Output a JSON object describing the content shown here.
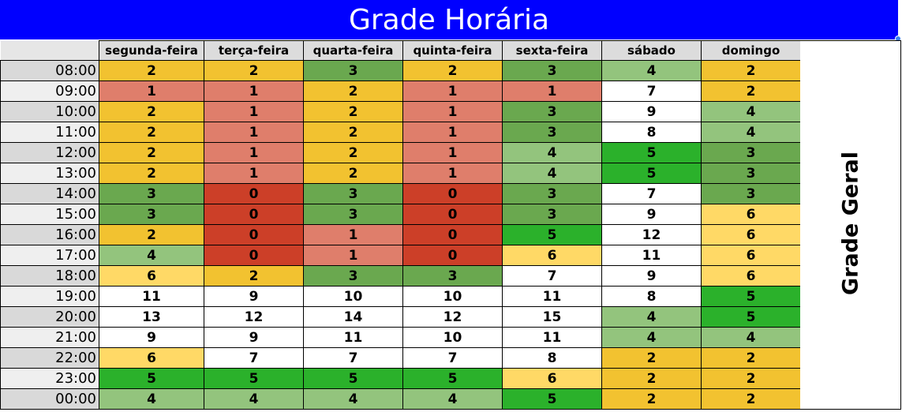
{
  "title": "Grade Horária",
  "side_label": "Grade Geral",
  "days": [
    "segunda-feira",
    "terça-feira",
    "quarta-feira",
    "quinta-feira",
    "sexta-feira",
    "sábado",
    "domingo"
  ],
  "rows": [
    {
      "time": "08:00",
      "values": [
        2,
        2,
        3,
        2,
        3,
        4,
        2
      ]
    },
    {
      "time": "09:00",
      "values": [
        1,
        1,
        2,
        1,
        1,
        7,
        2
      ]
    },
    {
      "time": "10:00",
      "values": [
        2,
        1,
        2,
        1,
        3,
        9,
        4
      ]
    },
    {
      "time": "11:00",
      "values": [
        2,
        1,
        2,
        1,
        3,
        8,
        4
      ]
    },
    {
      "time": "12:00",
      "values": [
        2,
        1,
        2,
        1,
        4,
        5,
        3
      ]
    },
    {
      "time": "13:00",
      "values": [
        2,
        1,
        2,
        1,
        4,
        5,
        3
      ]
    },
    {
      "time": "14:00",
      "values": [
        3,
        0,
        3,
        0,
        3,
        7,
        3
      ]
    },
    {
      "time": "15:00",
      "values": [
        3,
        0,
        3,
        0,
        3,
        9,
        6
      ]
    },
    {
      "time": "16:00",
      "values": [
        2,
        0,
        1,
        0,
        5,
        12,
        6
      ]
    },
    {
      "time": "17:00",
      "values": [
        4,
        0,
        1,
        0,
        6,
        11,
        6
      ]
    },
    {
      "time": "18:00",
      "values": [
        6,
        2,
        3,
        3,
        7,
        9,
        6
      ]
    },
    {
      "time": "19:00",
      "values": [
        11,
        9,
        10,
        10,
        11,
        8,
        5
      ]
    },
    {
      "time": "20:00",
      "values": [
        13,
        12,
        14,
        12,
        15,
        4,
        5
      ]
    },
    {
      "time": "21:00",
      "values": [
        9,
        9,
        11,
        10,
        11,
        4,
        4
      ]
    },
    {
      "time": "22:00",
      "values": [
        6,
        7,
        7,
        7,
        8,
        2,
        2
      ]
    },
    {
      "time": "23:00",
      "values": [
        5,
        5,
        5,
        5,
        6,
        2,
        2
      ]
    },
    {
      "time": "00:00",
      "values": [
        4,
        4,
        4,
        4,
        5,
        2,
        2
      ]
    }
  ],
  "colors": {
    "title_bg": "#0000ff",
    "0": "#cc3f28",
    "1": "#df7e6b",
    "2": "#f2c230",
    "3": "#6aa84f",
    "4": "#93c47d",
    "5": "#2bb12b",
    "6": "#ffd966",
    "7plus": "#ffffff"
  }
}
